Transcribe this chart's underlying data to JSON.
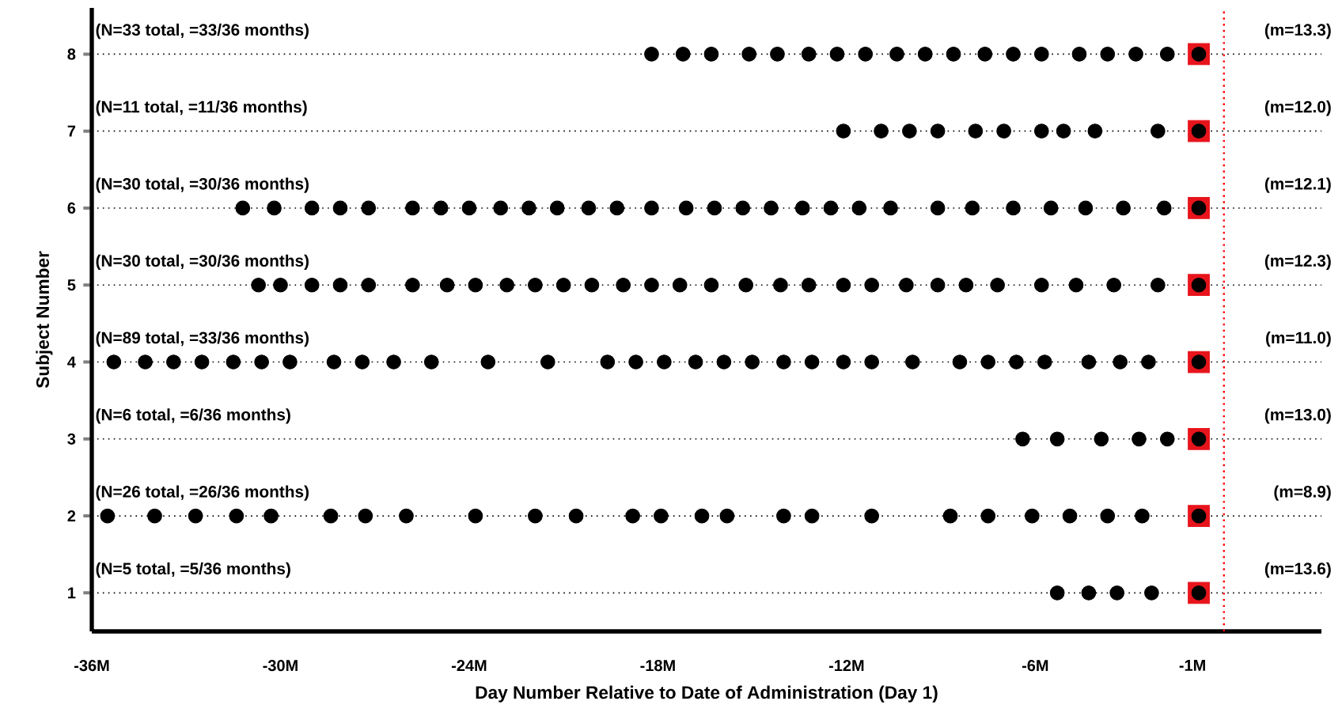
{
  "chart_data": {
    "type": "scatter",
    "xlabel": "Day Number Relative to Date of Administration (Day 1)",
    "ylabel": "Subject Number",
    "xlim": [
      -36,
      3.1
    ],
    "ylim": [
      0.5,
      8.6
    ],
    "xticks": [
      {
        "value": -36,
        "label": "-36M"
      },
      {
        "value": -30,
        "label": "-30M"
      },
      {
        "value": -24,
        "label": "-24M"
      },
      {
        "value": -18,
        "label": "-18M"
      },
      {
        "value": -12,
        "label": "-12M"
      },
      {
        "value": -6,
        "label": "-6M"
      },
      {
        "value": -1,
        "label": "-1M"
      }
    ],
    "yticks": [
      1,
      2,
      3,
      4,
      5,
      6,
      7,
      8
    ],
    "marker": "circle",
    "series": [
      {
        "color": "#e8141c",
        "marker": "square",
        "x": [
          -0.8,
          -0.8,
          -0.8,
          -0.8,
          -0.8,
          -0.8,
          -0.8,
          -0.8
        ],
        "values": [
          1,
          2,
          3,
          4,
          5,
          6,
          7,
          8
        ]
      },
      {
        "color": "#000000",
        "x": [
          -5.3,
          -4.3,
          -3.4,
          -2.3,
          -0.8
        ],
        "values": [
          1,
          1,
          1,
          1,
          1
        ]
      },
      {
        "color": "#000000",
        "x": [
          -35.5,
          -34.0,
          -32.7,
          -31.4,
          -30.3,
          -28.4,
          -27.3,
          -26.0,
          -23.8,
          -21.9,
          -20.6,
          -18.8,
          -17.9,
          -16.6,
          -15.8,
          -14.0,
          -13.1,
          -11.2,
          -8.7,
          -7.5,
          -6.1,
          -4.9,
          -3.7,
          -2.6,
          -0.8
        ],
        "values": [
          2,
          2,
          2,
          2,
          2,
          2,
          2,
          2,
          2,
          2,
          2,
          2,
          2,
          2,
          2,
          2,
          2,
          2,
          2,
          2,
          2,
          2,
          2,
          2,
          2
        ]
      },
      {
        "color": "#000000",
        "x": [
          -6.4,
          -5.3,
          -3.9,
          -2.7,
          -1.8,
          -0.8
        ],
        "values": [
          3,
          3,
          3,
          3,
          3,
          3
        ]
      },
      {
        "color": "#000000",
        "x": [
          -35.3,
          -34.3,
          -33.4,
          -32.5,
          -31.5,
          -30.6,
          -29.7,
          -28.3,
          -27.4,
          -26.4,
          -25.2,
          -23.4,
          -21.5,
          -19.6,
          -18.7,
          -17.8,
          -16.8,
          -15.9,
          -15.0,
          -14.0,
          -13.1,
          -12.1,
          -11.2,
          -9.9,
          -8.4,
          -7.5,
          -6.6,
          -5.7,
          -4.3,
          -3.3,
          -2.4,
          -0.8
        ],
        "values": [
          4,
          4,
          4,
          4,
          4,
          4,
          4,
          4,
          4,
          4,
          4,
          4,
          4,
          4,
          4,
          4,
          4,
          4,
          4,
          4,
          4,
          4,
          4,
          4,
          4,
          4,
          4,
          4,
          4,
          4,
          4,
          4
        ]
      },
      {
        "color": "#000000",
        "x": [
          -30.7,
          -30.0,
          -29.0,
          -28.1,
          -27.2,
          -25.8,
          -24.7,
          -23.8,
          -22.8,
          -21.9,
          -21.0,
          -20.1,
          -19.1,
          -18.2,
          -17.3,
          -16.3,
          -15.2,
          -14.1,
          -13.2,
          -12.1,
          -11.2,
          -10.1,
          -9.1,
          -8.2,
          -7.2,
          -5.8,
          -4.7,
          -3.5,
          -2.1,
          -0.8
        ],
        "values": [
          5,
          5,
          5,
          5,
          5,
          5,
          5,
          5,
          5,
          5,
          5,
          5,
          5,
          5,
          5,
          5,
          5,
          5,
          5,
          5,
          5,
          5,
          5,
          5,
          5,
          5,
          5,
          5,
          5,
          5
        ]
      },
      {
        "color": "#000000",
        "x": [
          -31.2,
          -30.2,
          -29.0,
          -28.1,
          -27.2,
          -25.8,
          -24.9,
          -24.0,
          -23.0,
          -22.1,
          -21.2,
          -20.2,
          -19.3,
          -18.2,
          -17.1,
          -16.2,
          -15.3,
          -14.4,
          -13.4,
          -12.5,
          -11.6,
          -10.6,
          -9.1,
          -8.0,
          -6.7,
          -5.5,
          -4.4,
          -3.2,
          -1.9,
          -0.8
        ],
        "values": [
          6,
          6,
          6,
          6,
          6,
          6,
          6,
          6,
          6,
          6,
          6,
          6,
          6,
          6,
          6,
          6,
          6,
          6,
          6,
          6,
          6,
          6,
          6,
          6,
          6,
          6,
          6,
          6,
          6,
          6
        ]
      },
      {
        "color": "#000000",
        "x": [
          -12.1,
          -10.9,
          -10.0,
          -9.1,
          -7.9,
          -7.0,
          -5.8,
          -5.1,
          -4.1,
          -2.1,
          -0.8
        ],
        "values": [
          7,
          7,
          7,
          7,
          7,
          7,
          7,
          7,
          7,
          7,
          7
        ]
      },
      {
        "color": "#000000",
        "x": [
          -18.2,
          -17.2,
          -16.3,
          -15.1,
          -14.2,
          -13.2,
          -12.3,
          -11.4,
          -10.4,
          -9.5,
          -8.6,
          -7.6,
          -6.7,
          -5.8,
          -4.6,
          -3.7,
          -2.8,
          -1.8,
          -0.8
        ],
        "values": [
          8,
          8,
          8,
          8,
          8,
          8,
          8,
          8,
          8,
          8,
          8,
          8,
          8,
          8,
          8,
          8,
          8,
          8,
          8
        ]
      }
    ],
    "ref_lines": [
      {
        "axis": "y",
        "value": 1,
        "color": "#000000",
        "line_style": "dotted"
      },
      {
        "axis": "y",
        "value": 2,
        "color": "#000000",
        "line_style": "dotted"
      },
      {
        "axis": "y",
        "value": 3,
        "color": "#000000",
        "line_style": "dotted"
      },
      {
        "axis": "y",
        "value": 4,
        "color": "#000000",
        "line_style": "dotted"
      },
      {
        "axis": "y",
        "value": 5,
        "color": "#000000",
        "line_style": "dotted"
      },
      {
        "axis": "y",
        "value": 6,
        "color": "#000000",
        "line_style": "dotted"
      },
      {
        "axis": "y",
        "value": 7,
        "color": "#000000",
        "line_style": "dotted"
      },
      {
        "axis": "y",
        "value": 8,
        "color": "#000000",
        "line_style": "dotted"
      },
      {
        "axis": "x",
        "value": 0,
        "color": "#ff0000",
        "line_style": "dotted"
      }
    ],
    "annotations": [
      {
        "text": "(N=5 total, =5/36 months)",
        "y": 1
      },
      {
        "text": "(N=26 total, =26/36 months)",
        "y": 2
      },
      {
        "text": "(N=6 total, =6/36 months)",
        "y": 3
      },
      {
        "text": "(N=89 total, =33/36 months)",
        "y": 4
      },
      {
        "text": "(N=30 total, =30/36 months)",
        "y": 5
      },
      {
        "text": "(N=30 total, =30/36 months)",
        "y": 6
      },
      {
        "text": "(N=11 total, =11/36 months)",
        "y": 7
      },
      {
        "text": "(N=33 total, =33/36 months)",
        "y": 8
      },
      {
        "text": "(m=13.6)",
        "y": 1
      },
      {
        "text": "(m=8.9)",
        "y": 2
      },
      {
        "text": "(m=13.0)",
        "y": 3
      },
      {
        "text": "(m=11.0)",
        "y": 4
      },
      {
        "text": "(m=12.3)",
        "y": 5
      },
      {
        "text": "(m=12.1)",
        "y": 6
      },
      {
        "text": "(m=12.0)",
        "y": 7
      },
      {
        "text": "(m=13.3)",
        "y": 8
      }
    ]
  }
}
